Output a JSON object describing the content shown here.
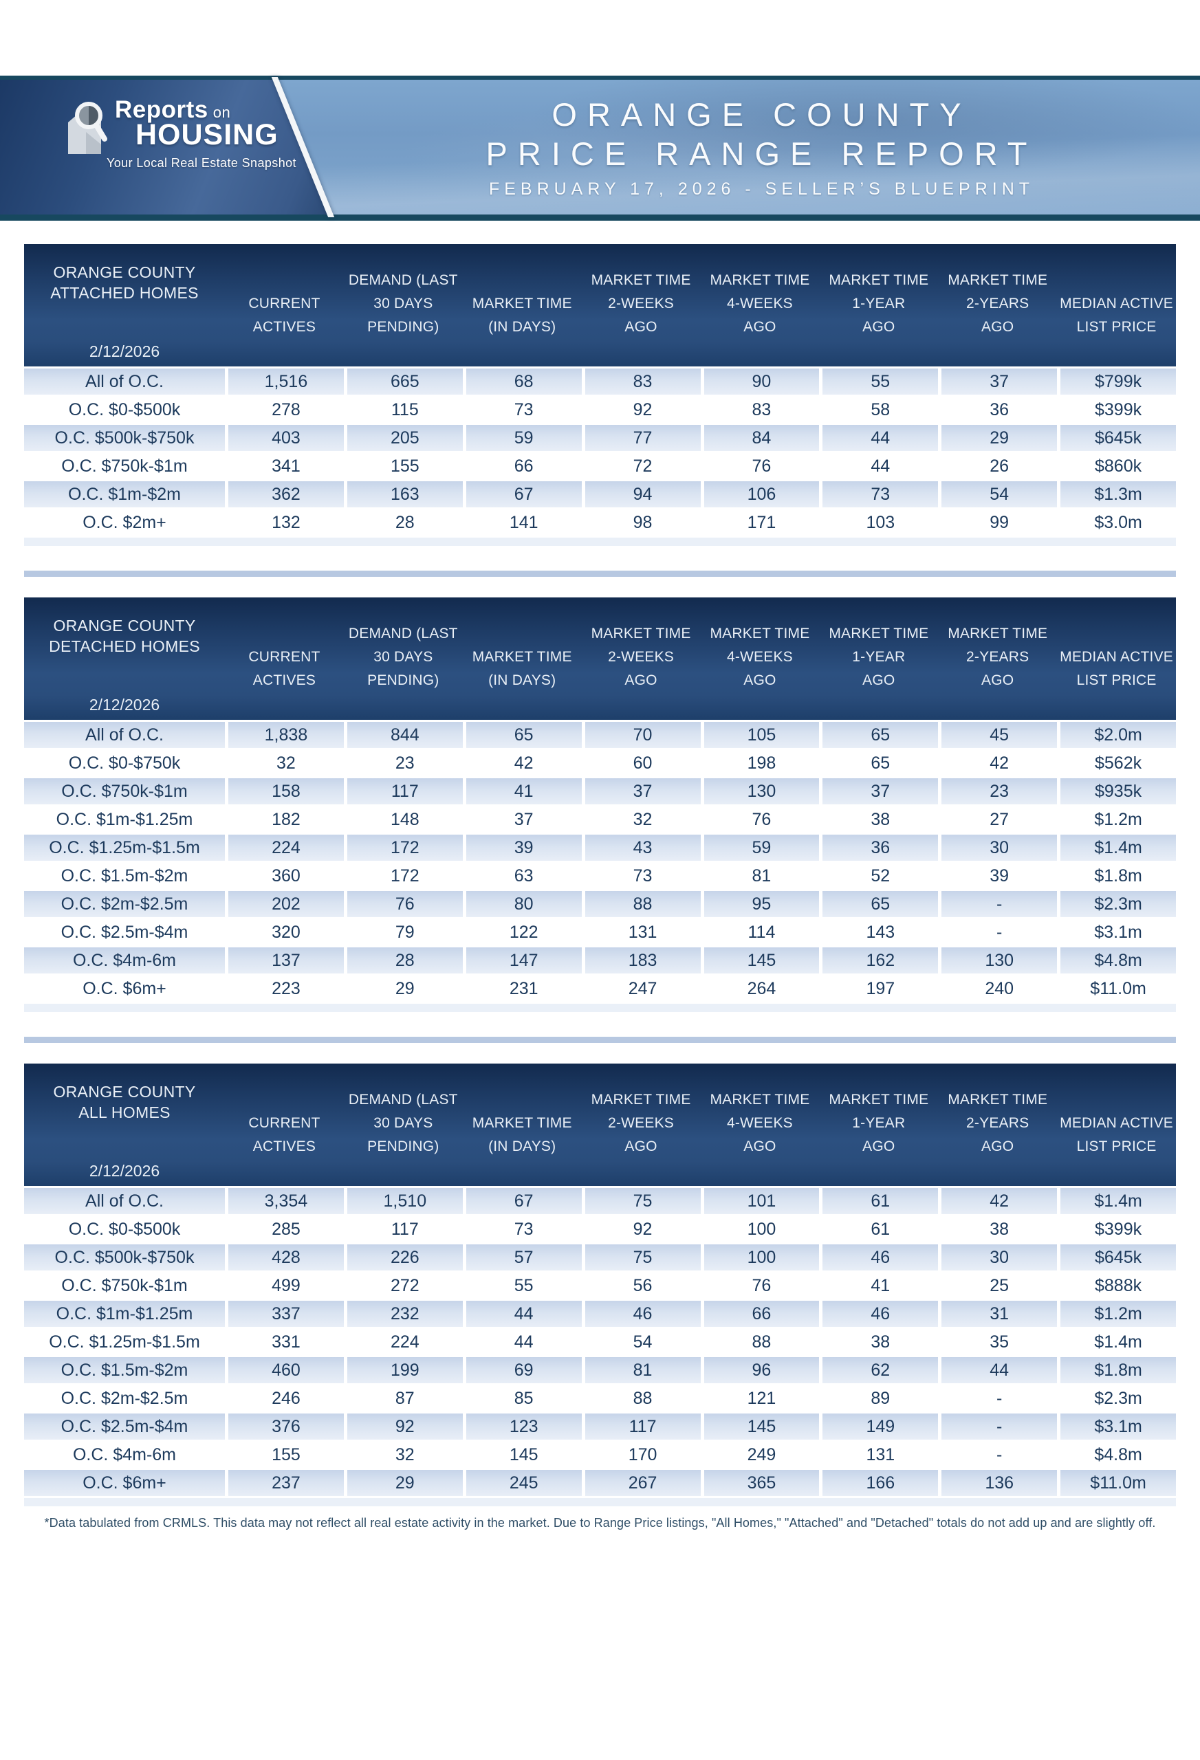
{
  "header": {
    "logo": {
      "brand": "Reports",
      "brand_suffix": "on",
      "brand_bottom": "HOUSING",
      "tagline": "Your Local Real Estate Snapshot"
    },
    "title_line1": "ORANGE COUNTY",
    "title_line2": "PRICE RANGE REPORT",
    "subtitle": "FEBRUARY 17, 2026 - SELLER’S BLUEPRINT"
  },
  "columns": [
    {
      "line1": "",
      "line2": "CURRENT",
      "line3": "ACTIVES"
    },
    {
      "line1": "DEMAND (LAST",
      "line2": "30 DAYS",
      "line3": "PENDING)"
    },
    {
      "line1": "",
      "line2": "MARKET TIME",
      "line3": "(IN DAYS)"
    },
    {
      "line1": "MARKET TIME",
      "line2": "2-WEEKS",
      "line3": "AGO"
    },
    {
      "line1": "MARKET TIME",
      "line2": "4-WEEKS",
      "line3": "AGO"
    },
    {
      "line1": "MARKET TIME",
      "line2": "1-YEAR",
      "line3": "AGO"
    },
    {
      "line1": "MARKET TIME",
      "line2": "2-YEARS",
      "line3": "AGO"
    },
    {
      "line1": "",
      "line2": "MEDIAN ACTIVE",
      "line3": "LIST PRICE"
    }
  ],
  "tables": [
    {
      "slug": "attached-homes-table",
      "title_line1": "ORANGE COUNTY",
      "title_line2": "ATTACHED HOMES",
      "date": "2/12/2026",
      "rows": [
        [
          "All of O.C.",
          "1,516",
          "665",
          "68",
          "83",
          "90",
          "55",
          "37",
          "$799k"
        ],
        [
          "O.C. $0-$500k",
          "278",
          "115",
          "73",
          "92",
          "83",
          "58",
          "36",
          "$399k"
        ],
        [
          "O.C. $500k-$750k",
          "403",
          "205",
          "59",
          "77",
          "84",
          "44",
          "29",
          "$645k"
        ],
        [
          "O.C. $750k-$1m",
          "341",
          "155",
          "66",
          "72",
          "76",
          "44",
          "26",
          "$860k"
        ],
        [
          "O.C. $1m-$2m",
          "362",
          "163",
          "67",
          "94",
          "106",
          "73",
          "54",
          "$1.3m"
        ],
        [
          "O.C. $2m+",
          "132",
          "28",
          "141",
          "98",
          "171",
          "103",
          "99",
          "$3.0m"
        ]
      ]
    },
    {
      "slug": "detached-homes-table",
      "title_line1": "ORANGE COUNTY",
      "title_line2": "DETACHED HOMES",
      "date": "2/12/2026",
      "rows": [
        [
          "All of O.C.",
          "1,838",
          "844",
          "65",
          "70",
          "105",
          "65",
          "45",
          "$2.0m"
        ],
        [
          "O.C. $0-$750k",
          "32",
          "23",
          "42",
          "60",
          "198",
          "65",
          "42",
          "$562k"
        ],
        [
          "O.C. $750k-$1m",
          "158",
          "117",
          "41",
          "37",
          "130",
          "37",
          "23",
          "$935k"
        ],
        [
          "O.C. $1m-$1.25m",
          "182",
          "148",
          "37",
          "32",
          "76",
          "38",
          "27",
          "$1.2m"
        ],
        [
          "O.C. $1.25m-$1.5m",
          "224",
          "172",
          "39",
          "43",
          "59",
          "36",
          "30",
          "$1.4m"
        ],
        [
          "O.C. $1.5m-$2m",
          "360",
          "172",
          "63",
          "73",
          "81",
          "52",
          "39",
          "$1.8m"
        ],
        [
          "O.C. $2m-$2.5m",
          "202",
          "76",
          "80",
          "88",
          "95",
          "65",
          "-",
          "$2.3m"
        ],
        [
          "O.C. $2.5m-$4m",
          "320",
          "79",
          "122",
          "131",
          "114",
          "143",
          "-",
          "$3.1m"
        ],
        [
          "O.C. $4m-6m",
          "137",
          "28",
          "147",
          "183",
          "145",
          "162",
          "130",
          "$4.8m"
        ],
        [
          "O.C. $6m+",
          "223",
          "29",
          "231",
          "247",
          "264",
          "197",
          "240",
          "$11.0m"
        ]
      ]
    },
    {
      "slug": "all-homes-table",
      "title_line1": "ORANGE COUNTY",
      "title_line2": "ALL HOMES",
      "date": "2/12/2026",
      "rows": [
        [
          "All of O.C.",
          "3,354",
          "1,510",
          "67",
          "75",
          "101",
          "61",
          "42",
          "$1.4m"
        ],
        [
          "O.C. $0-$500k",
          "285",
          "117",
          "73",
          "92",
          "100",
          "61",
          "38",
          "$399k"
        ],
        [
          "O.C. $500k-$750k",
          "428",
          "226",
          "57",
          "75",
          "100",
          "46",
          "30",
          "$645k"
        ],
        [
          "O.C. $750k-$1m",
          "499",
          "272",
          "55",
          "56",
          "76",
          "41",
          "25",
          "$888k"
        ],
        [
          "O.C. $1m-$1.25m",
          "337",
          "232",
          "44",
          "46",
          "66",
          "46",
          "31",
          "$1.2m"
        ],
        [
          "O.C. $1.25m-$1.5m",
          "331",
          "224",
          "44",
          "54",
          "88",
          "38",
          "35",
          "$1.4m"
        ],
        [
          "O.C. $1.5m-$2m",
          "460",
          "199",
          "69",
          "81",
          "96",
          "62",
          "44",
          "$1.8m"
        ],
        [
          "O.C. $2m-$2.5m",
          "246",
          "87",
          "85",
          "88",
          "121",
          "89",
          "-",
          "$2.3m"
        ],
        [
          "O.C. $2.5m-$4m",
          "376",
          "92",
          "123",
          "117",
          "145",
          "149",
          "-",
          "$3.1m"
        ],
        [
          "O.C. $4m-6m",
          "155",
          "32",
          "145",
          "170",
          "249",
          "131",
          "-",
          "$4.8m"
        ],
        [
          "O.C. $6m+",
          "237",
          "29",
          "245",
          "267",
          "365",
          "166",
          "136",
          "$11.0m"
        ]
      ]
    }
  ],
  "footnote": "*Data tabulated from CRMLS. This data may not reflect all real estate activity in the market. Due to Range Price listings, \"All Homes,\" \"Attached\" and \"Detached\" totals do not add up and are slightly off.",
  "colors": {
    "banner_teal_border": "#17485f",
    "banner_left_blue": "#2c4d7d",
    "banner_right_blue": "#7aa1c9",
    "table_header_navy": "#1e3c66",
    "row_alt_blue": "#c6d4e9",
    "divider_blue": "#b7c8e1",
    "text_navy": "#1d3a5c"
  }
}
